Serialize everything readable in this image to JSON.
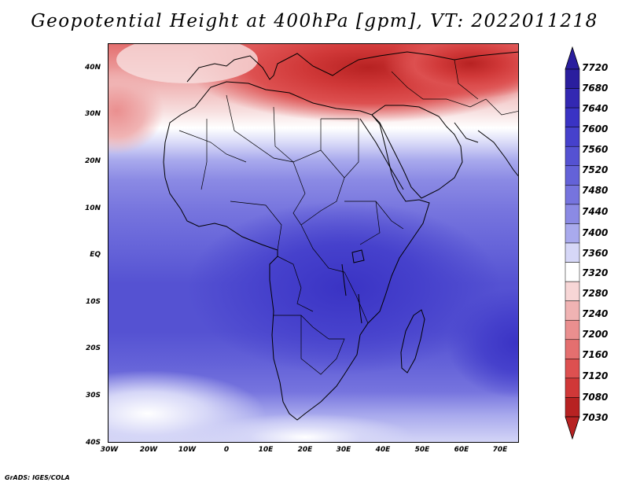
{
  "title": "Geopotential Height at 400hPa [gpm], VT: 2022011218",
  "credit": "GrADS: IGES/COLA",
  "variable": "Geopotential Height",
  "level": "400hPa",
  "units": "gpm",
  "valid_time": "2022011218",
  "axes": {
    "lon_ticks": [
      "30W",
      "20W",
      "10W",
      "0",
      "10E",
      "20E",
      "30E",
      "40E",
      "50E",
      "60E",
      "70E"
    ],
    "lon_values": [
      -30,
      -20,
      -10,
      0,
      10,
      20,
      30,
      40,
      50,
      60,
      70
    ],
    "lat_ticks": [
      "40N",
      "30N",
      "20N",
      "10N",
      "EQ",
      "10S",
      "20S",
      "30S",
      "40S"
    ],
    "lat_values": [
      40,
      30,
      20,
      10,
      0,
      -10,
      -20,
      -30,
      -40
    ],
    "lon_range": [
      -30,
      75
    ],
    "lat_range": [
      -40,
      44.5
    ]
  },
  "colorbar": {
    "labels": [
      "7720",
      "7680",
      "7640",
      "7600",
      "7560",
      "7520",
      "7480",
      "7440",
      "7400",
      "7360",
      "7320",
      "7280",
      "7240",
      "7200",
      "7160",
      "7120",
      "7080",
      "7030"
    ],
    "colors": [
      "#2a1e9e",
      "#3328b2",
      "#3a33c4",
      "#4641cc",
      "#5552d2",
      "#6462d8",
      "#7674de",
      "#8b8ae4",
      "#a9aaed",
      "#d6d7f7",
      "#ffffff",
      "#f7d6d6",
      "#f0b3b3",
      "#ea8f8f",
      "#e46f6f",
      "#dd5050",
      "#d03838",
      "#b72222"
    ]
  },
  "field": {
    "description_levels_gpm": [
      7030,
      7080,
      7120,
      7160,
      7200,
      7240,
      7280,
      7320,
      7360,
      7400,
      7440,
      7480,
      7520,
      7560,
      7600,
      7640,
      7680,
      7720
    ],
    "max_region": "central and southern Africa, ~7600-7640 gpm",
    "min_region": "eastern Mediterranean / Turkey, ~7080-7120 gpm"
  }
}
